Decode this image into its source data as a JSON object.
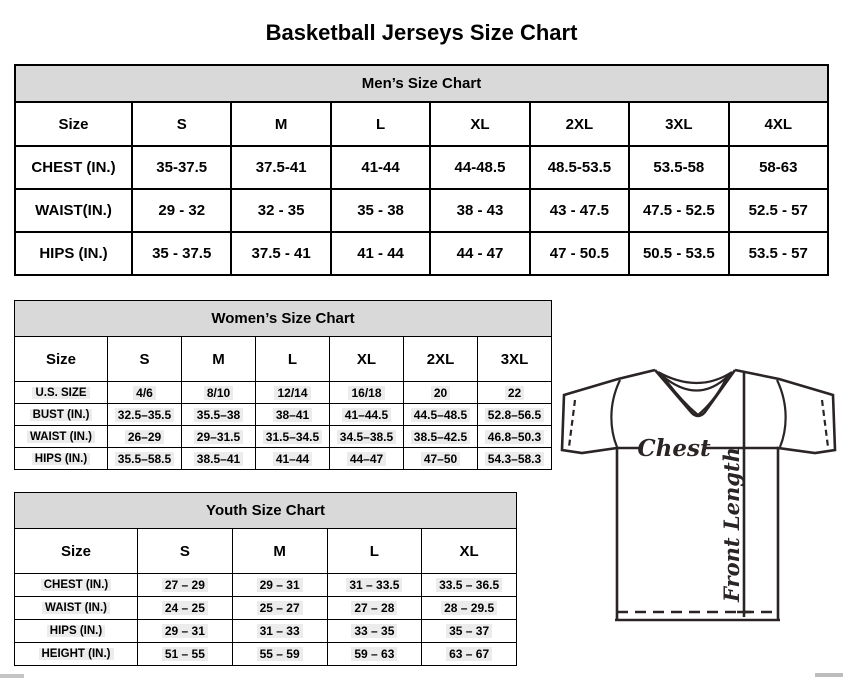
{
  "page": {
    "title": "Basketball Jerseys Size Chart"
  },
  "colors": {
    "table_band_bg": "#d9d9d9",
    "table_border": "#000000",
    "diagram_stroke": "#2a2425",
    "cell_highlight": "#ececec"
  },
  "tables": {
    "mens": {
      "title": "Men’s Size Chart",
      "size_label": "Size",
      "columns": [
        "S",
        "M",
        "L",
        "XL",
        "2XL",
        "3XL",
        "4XL"
      ],
      "rows": [
        {
          "label": "CHEST (IN.)",
          "values": [
            "35-37.5",
            "37.5-41",
            "41-44",
            "44-48.5",
            "48.5-53.5",
            "53.5-58",
            "58-63"
          ]
        },
        {
          "label": "WAIST(IN.)",
          "values": [
            "29 - 32",
            "32 - 35",
            "35 - 38",
            "38 - 43",
            "43 - 47.5",
            "47.5 - 52.5",
            "52.5 - 57"
          ]
        },
        {
          "label": "HIPS (IN.)",
          "values": [
            "35 - 37.5",
            "37.5 - 41",
            "41 - 44",
            "44 - 47",
            "47 - 50.5",
            "50.5 - 53.5",
            "53.5 - 57"
          ]
        }
      ]
    },
    "womens": {
      "title": "Women’s Size Chart",
      "size_label": "Size",
      "columns": [
        "S",
        "M",
        "L",
        "XL",
        "2XL",
        "3XL"
      ],
      "rows": [
        {
          "label": "U.S. SIZE",
          "values": [
            "4/6",
            "8/10",
            "12/14",
            "16/18",
            "20",
            "22"
          ]
        },
        {
          "label": "BUST (IN.)",
          "values": [
            "32.5–35.5",
            "35.5–38",
            "38–41",
            "41–44.5",
            "44.5–48.5",
            "52.8–56.5"
          ]
        },
        {
          "label": "WAIST (IN.)",
          "values": [
            "26–29",
            "29–31.5",
            "31.5–34.5",
            "34.5–38.5",
            "38.5–42.5",
            "46.8–50.3"
          ]
        },
        {
          "label": "HIPS (IN.)",
          "values": [
            "35.5–58.5",
            "38.5–41",
            "41–44",
            "44–47",
            "47–50",
            "54.3–58.3"
          ]
        }
      ]
    },
    "youth": {
      "title": "Youth Size Chart",
      "size_label": "Size",
      "columns": [
        "S",
        "M",
        "L",
        "XL"
      ],
      "rows": [
        {
          "label": "CHEST (IN.)",
          "values": [
            "27 – 29",
            "29 – 31",
            "31 – 33.5",
            "33.5 – 36.5"
          ]
        },
        {
          "label": "WAIST (IN.)",
          "values": [
            "24 – 25",
            "25 – 27",
            "27 – 28",
            "28 – 29.5"
          ]
        },
        {
          "label": "HIPS (IN.)",
          "values": [
            "29 – 31",
            "31 – 33",
            "33 – 35",
            "35 – 37"
          ]
        },
        {
          "label": "HEIGHT (IN.)",
          "values": [
            "51 – 55",
            "55 – 59",
            "59 – 63",
            "63 – 67"
          ]
        }
      ]
    }
  },
  "diagram": {
    "chest_label": "Chest",
    "front_length_label": "Front Length"
  }
}
